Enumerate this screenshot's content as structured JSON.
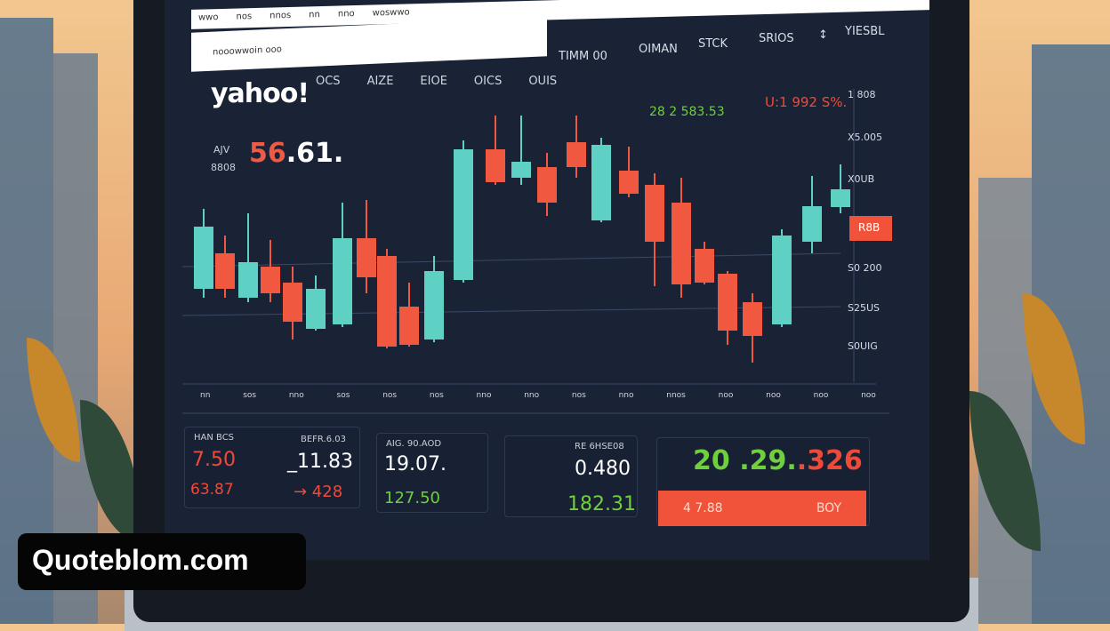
{
  "topbar": {
    "items": [
      "wwo",
      "nos",
      "nnos",
      "nn",
      "nno",
      "woswwo"
    ]
  },
  "searchbar": {
    "text": "nooowwoin ooo"
  },
  "nav": [
    "TIMM 00",
    "OIMAN",
    "STCK",
    "SRIOS",
    "↕",
    "YIESBL"
  ],
  "logo": "yahoo!",
  "menu": [
    "OCS",
    "AIZE",
    "EIOE",
    "OICS",
    "OUIS"
  ],
  "quote": {
    "label": "AJV",
    "sub": "8808",
    "price_red": "56",
    "price_white": ".61."
  },
  "ticker_green": "28 2 583.53",
  "ticker_red": "U:1 992 S%.",
  "y_axis": [
    "1 808",
    "X5.005",
    "X0UB",
    "S0 200",
    "S25US",
    "S0UIG"
  ],
  "y_tag": "R8B",
  "y_tag_color": "#f0533a",
  "x_axis": [
    "nn",
    "sos",
    "nno",
    "sos",
    "nos",
    "nos",
    "nno",
    "nno",
    "nos",
    "nno",
    "nnos",
    "noo",
    "noo",
    "noo",
    "noo"
  ],
  "colors": {
    "up": "#5fd1c4",
    "down": "#f0583f",
    "bg": "#1a2336"
  },
  "cards": [
    {
      "label": "HAN BCS",
      "v1": "7.50",
      "v2": "63.87",
      "label2": "BEFR.6.03",
      "v3": "_11.83",
      "v4": "→ 428"
    },
    {
      "label": "AIG. 90.AOD",
      "v1": "19.07.",
      "v2": "127.50"
    },
    {
      "label": "RE 6HSE08",
      "v1": "0.480",
      "v2": "182.31"
    },
    {
      "v_green": "20 .29.",
      "v_red": ".326",
      "buy_price": "4 7.88",
      "buy_label": "BOY"
    }
  ],
  "watermark": "Quoteblom.com"
}
